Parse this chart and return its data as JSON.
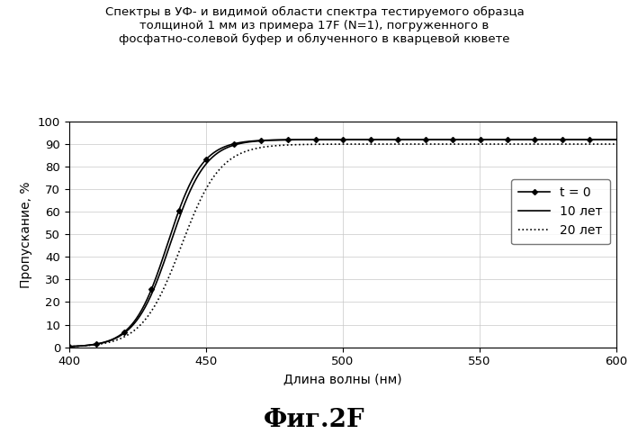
{
  "title_line1": "Спектры в УФ- и видимой области спектра тестируемого образца",
  "title_line2": "толщиной 1 мм из примера 17F (N=1), погруженного в",
  "title_line3": "фосфатно-солевой буфер и облученного в кварцевой кювете",
  "xlabel": "Длина волны (нм)",
  "ylabel": "Пропускание, %",
  "fig_label": "Фиг.2F",
  "xlim": [
    400,
    600
  ],
  "ylim": [
    0,
    100
  ],
  "xticks": [
    400,
    450,
    500,
    550,
    600
  ],
  "yticks": [
    0,
    10,
    20,
    30,
    40,
    50,
    60,
    70,
    80,
    90,
    100
  ],
  "legend_labels": [
    "t = 0",
    "10 лет",
    "20 лет"
  ],
  "line_styles": [
    "-",
    "-",
    ":"
  ],
  "line_colors": [
    "#000000",
    "#000000",
    "#000000"
  ],
  "markers": [
    "D",
    "",
    ""
  ],
  "markersize": 3,
  "curve_t0": {
    "x_mid": 436,
    "k": 0.16,
    "ymax": 92
  },
  "curve_10": {
    "x_mid": 437,
    "k": 0.155,
    "ymax": 92
  },
  "curve_20": {
    "x_mid": 441,
    "k": 0.14,
    "ymax": 90
  },
  "background_color": "#ffffff",
  "grid_color": "#c8c8c8",
  "title_fontsize": 9.5,
  "axis_fontsize": 10,
  "tick_fontsize": 9.5,
  "legend_fontsize": 10,
  "fig_label_fontsize": 20
}
